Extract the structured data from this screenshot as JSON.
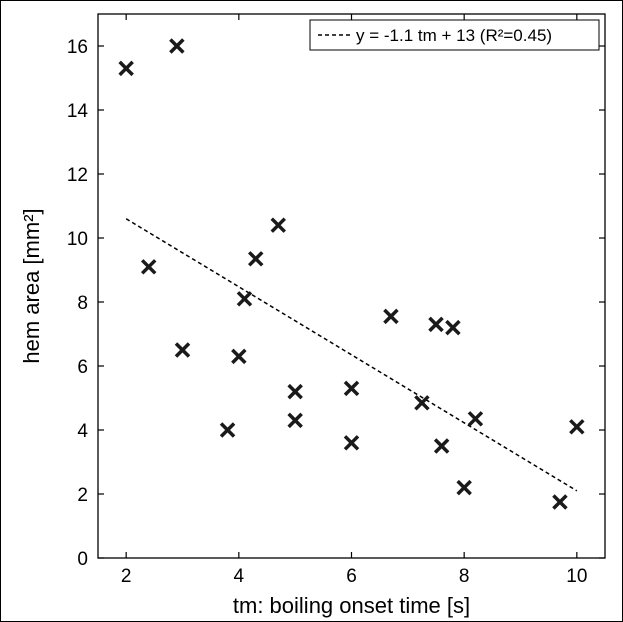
{
  "chart_data": {
    "type": "scatter",
    "title": "",
    "xlabel": "tm: boiling onset time [s]",
    "ylabel": "hem area [mm²]",
    "xlim": [
      1.5,
      10.5
    ],
    "ylim": [
      0,
      17
    ],
    "xticks": [
      2,
      4,
      6,
      8,
      10
    ],
    "yticks": [
      0,
      2,
      4,
      6,
      8,
      10,
      12,
      14,
      16
    ],
    "grid": false,
    "marker": "x",
    "colors": {
      "points": "#1a1a1a",
      "fit_line": "#000000",
      "axes": "#000000"
    },
    "series": [
      {
        "values": [
          {
            "x": 2.0,
            "y": 15.3
          },
          {
            "x": 2.9,
            "y": 16.0
          },
          {
            "x": 2.4,
            "y": 9.1
          },
          {
            "x": 3.0,
            "y": 6.5
          },
          {
            "x": 3.8,
            "y": 4.0
          },
          {
            "x": 4.0,
            "y": 6.3
          },
          {
            "x": 4.1,
            "y": 8.1
          },
          {
            "x": 4.3,
            "y": 9.35
          },
          {
            "x": 4.7,
            "y": 10.4
          },
          {
            "x": 5.0,
            "y": 5.2
          },
          {
            "x": 5.0,
            "y": 4.3
          },
          {
            "x": 6.0,
            "y": 5.3
          },
          {
            "x": 6.0,
            "y": 3.6
          },
          {
            "x": 6.7,
            "y": 7.55
          },
          {
            "x": 7.25,
            "y": 4.85
          },
          {
            "x": 7.5,
            "y": 7.3
          },
          {
            "x": 7.6,
            "y": 3.5
          },
          {
            "x": 7.8,
            "y": 7.2
          },
          {
            "x": 8.0,
            "y": 2.2
          },
          {
            "x": 8.2,
            "y": 4.35
          },
          {
            "x": 9.7,
            "y": 1.75
          },
          {
            "x": 10.0,
            "y": 4.1
          }
        ]
      }
    ],
    "fit_line": {
      "label": "y = -1.1 tm + 13 (R²=0.45)",
      "style": "dashed",
      "x": [
        2,
        10
      ],
      "y": [
        10.6,
        2.1
      ]
    },
    "legend": {
      "placement": "top-right",
      "entries": [
        "y = -1.1 tm + 13 (R²=0.45)"
      ]
    }
  }
}
